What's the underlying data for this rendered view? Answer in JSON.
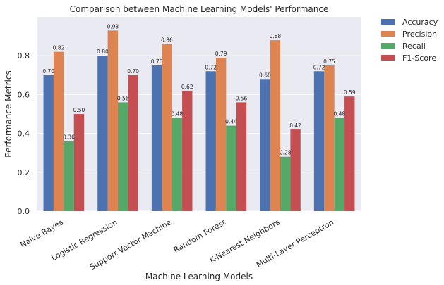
{
  "chart_data": {
    "type": "bar",
    "title": "Comparison between Machine Learning Models' Performance",
    "xlabel": "Machine Learning Models",
    "ylabel": "Performance Metrics",
    "ylim": [
      0,
      1.0
    ],
    "yticks": [
      "0.0",
      "0.2",
      "0.4",
      "0.6",
      "0.8"
    ],
    "grid": true,
    "legend_position": "outside-top-right",
    "categories": [
      "Naive Bayes",
      "Logistic Regression",
      "Support Vector Machine",
      "Random Forest",
      "K-Nearest Neighbors",
      "Multi-Layer Perceptron"
    ],
    "series": [
      {
        "name": "Accuracy",
        "color": "#4c72b0",
        "values": [
          0.7,
          0.8,
          0.75,
          0.72,
          0.68,
          0.72
        ],
        "labels": [
          "0.70",
          "0.80",
          "0.75",
          "0.72",
          "0.68",
          "0.72"
        ]
      },
      {
        "name": "Precision",
        "color": "#dd8452",
        "values": [
          0.82,
          0.93,
          0.86,
          0.79,
          0.88,
          0.75
        ],
        "labels": [
          "0.82",
          "0.93",
          "0.86",
          "0.79",
          "0.88",
          "0.75"
        ]
      },
      {
        "name": "Recall",
        "color": "#55a868",
        "values": [
          0.36,
          0.56,
          0.48,
          0.44,
          0.28,
          0.48
        ],
        "labels": [
          "0.36",
          "0.56",
          "0.48",
          "0.44",
          "0.28",
          "0.48"
        ]
      },
      {
        "name": "F1-Score",
        "color": "#c44e52",
        "values": [
          0.5,
          0.7,
          0.62,
          0.56,
          0.42,
          0.59
        ],
        "labels": [
          "0.50",
          "0.70",
          "0.62",
          "0.56",
          "0.42",
          "0.59"
        ]
      }
    ]
  }
}
